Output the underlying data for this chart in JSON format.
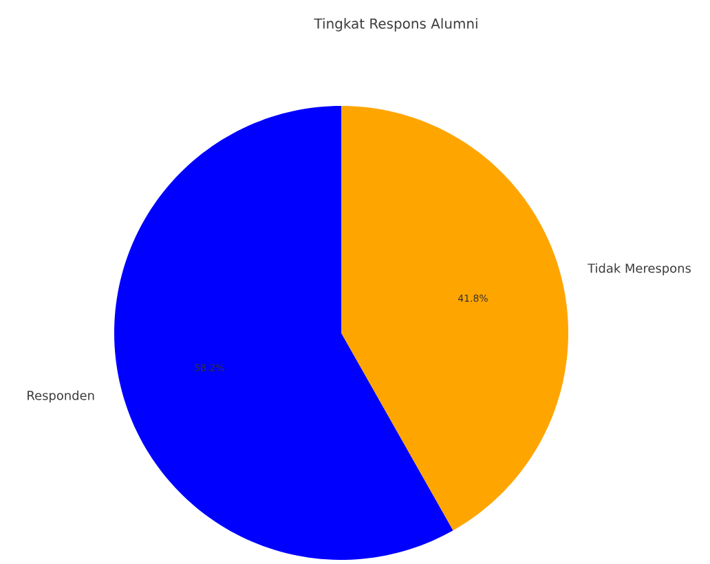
{
  "chart_data": {
    "type": "pie",
    "title": "Tingkat Respons Alumni",
    "categories": [
      "Responden",
      "Tidak Merespons"
    ],
    "values": [
      58.2,
      41.8
    ],
    "value_labels": [
      "58.2%",
      "41.8%"
    ],
    "colors": [
      "#0000ff",
      "#ffa500"
    ]
  }
}
